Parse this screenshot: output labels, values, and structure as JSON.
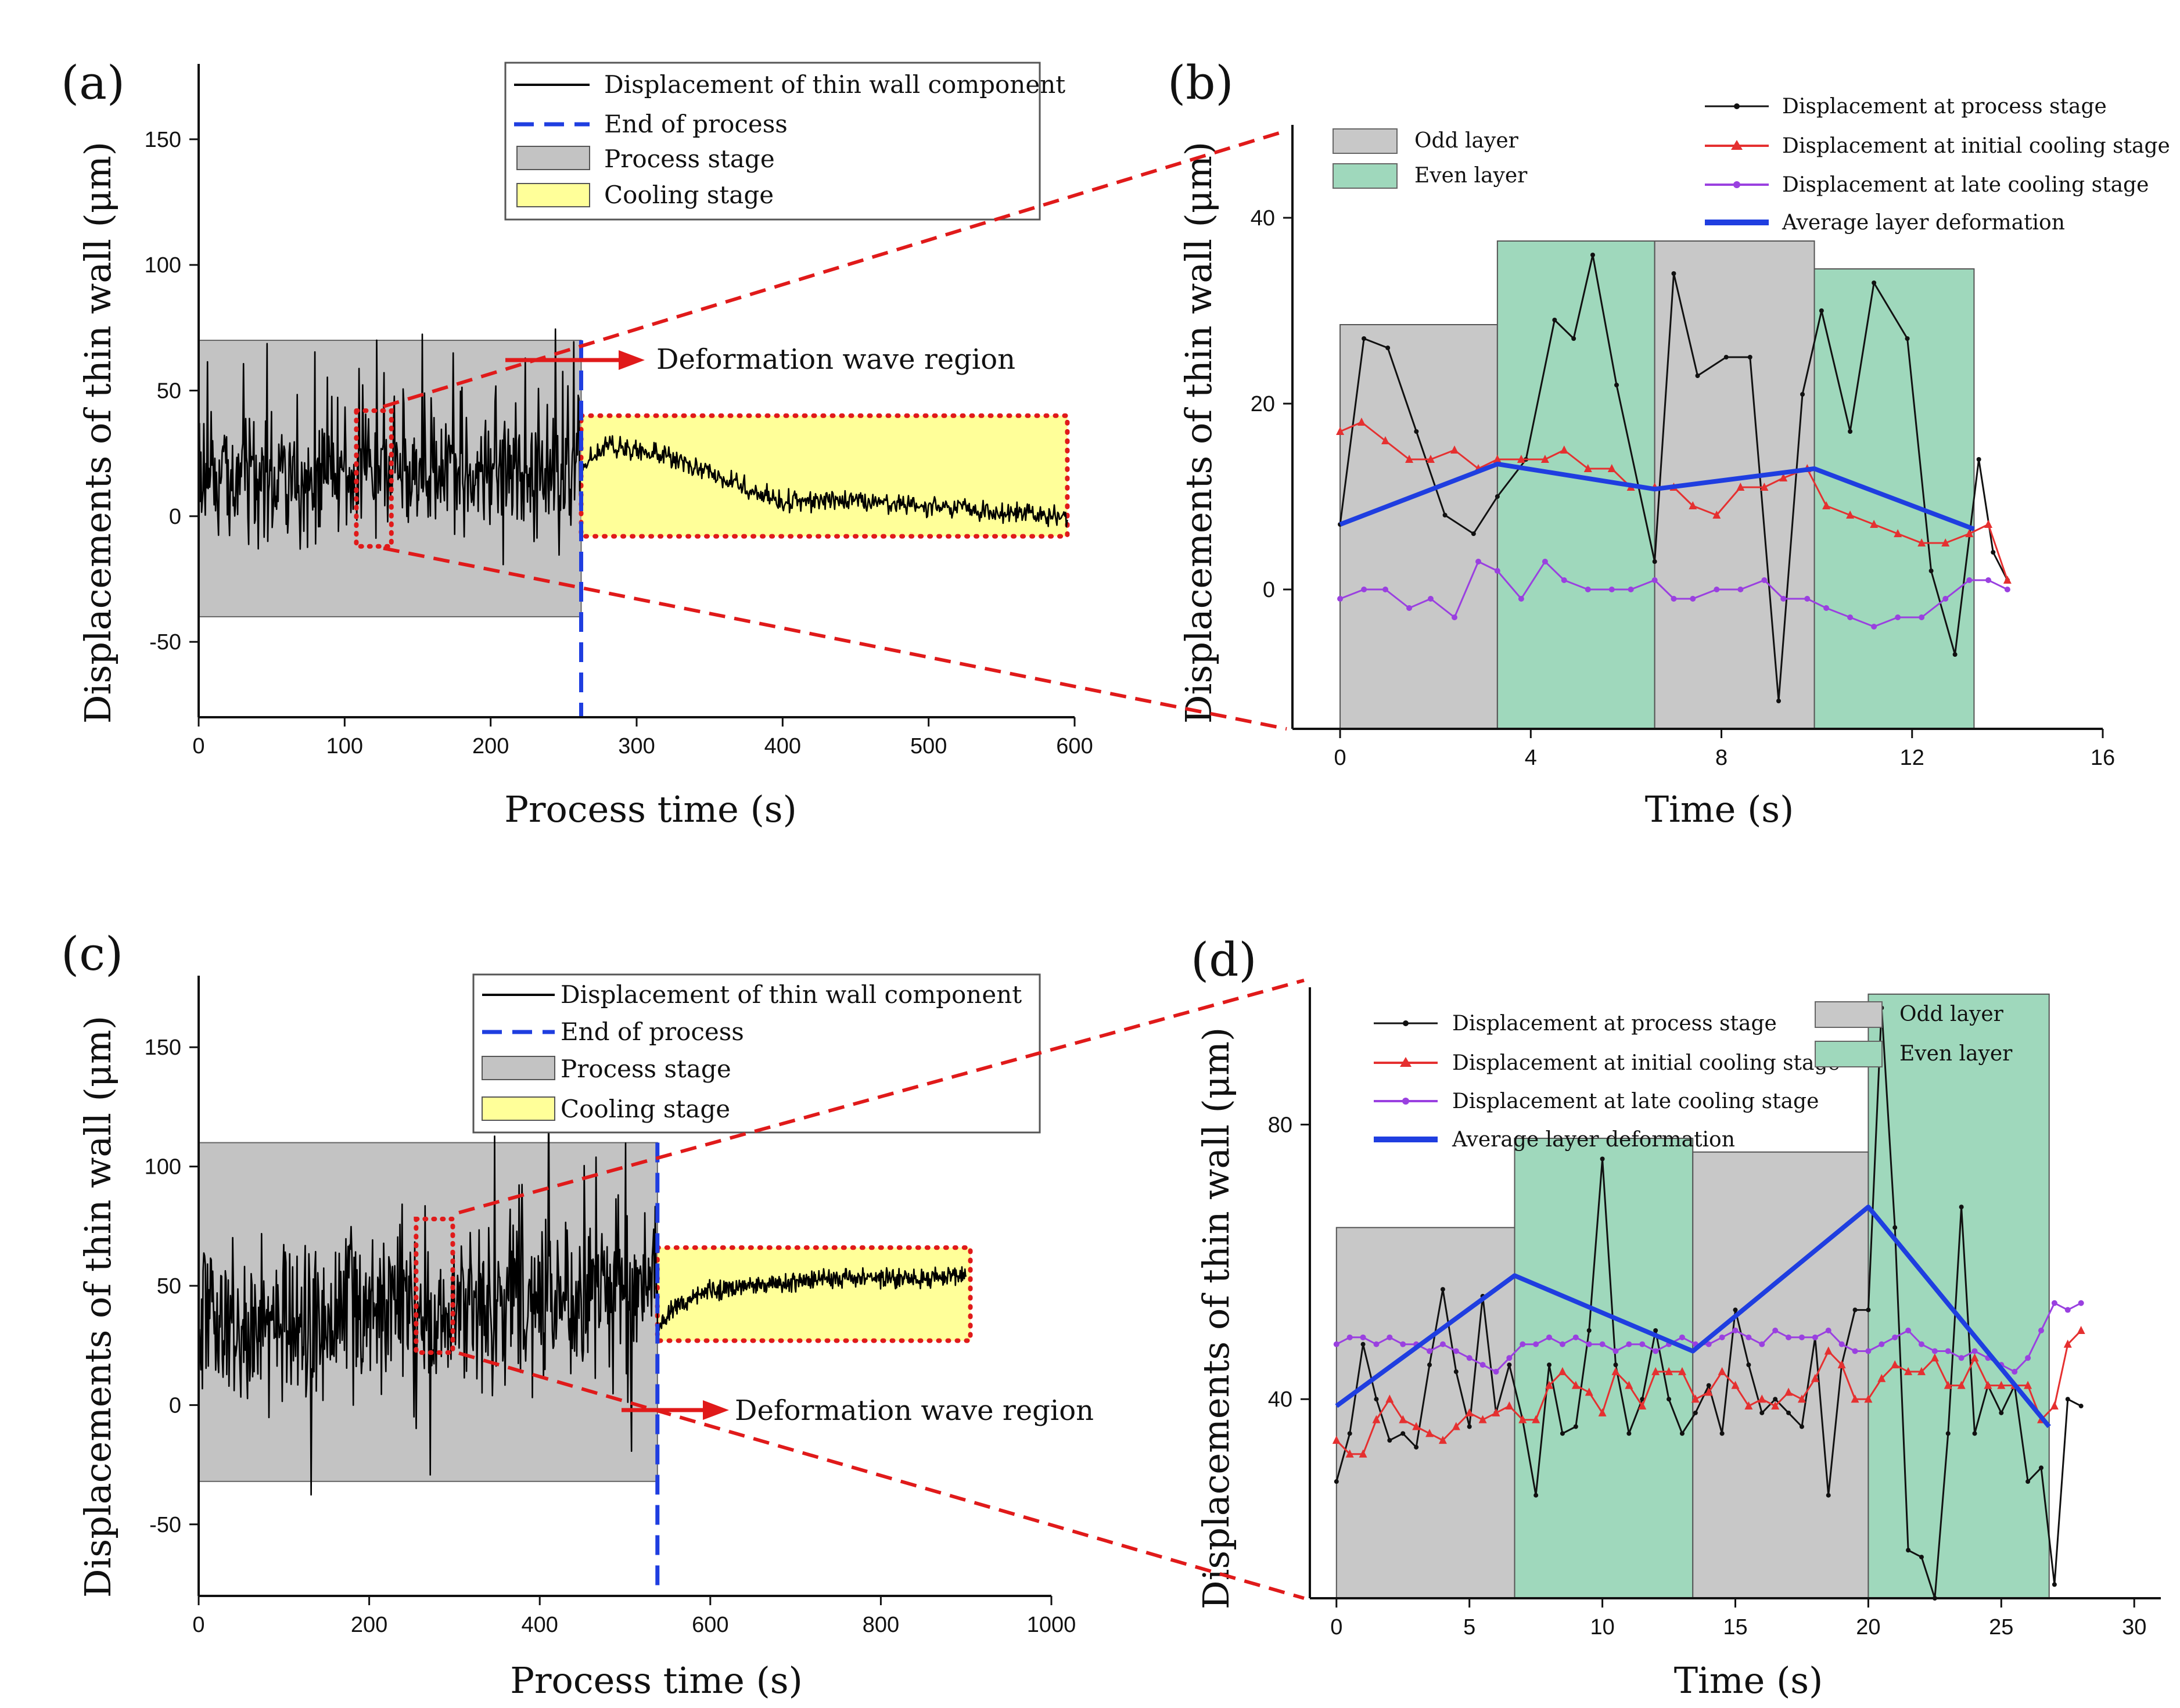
{
  "chart_data": [
    {
      "id": "a",
      "type": "line",
      "panel_label": "(a)",
      "xlabel": "Process time (s)",
      "ylabel": "Displacements of thin wall (μm)",
      "xlim": [
        0,
        600
      ],
      "ylim": [
        -80,
        180
      ],
      "xticks": [
        0,
        100,
        200,
        300,
        400,
        500,
        600
      ],
      "yticks": [
        -50,
        0,
        50,
        100,
        150
      ],
      "legend": {
        "position": "top-right",
        "entries": [
          "Displacement of thin wall component",
          "End of process",
          "Process stage",
          "Cooling stage"
        ]
      },
      "end_of_process_x": 262,
      "process_stage": {
        "x": [
          0,
          262
        ],
        "y": [
          -40,
          70
        ]
      },
      "cooling_stage": {
        "x": [
          262,
          595
        ],
        "y": [
          -8,
          40
        ]
      },
      "zoom_box": {
        "x": [
          108,
          132
        ],
        "y": [
          -12,
          42
        ]
      },
      "annotation": "Deformation wave region",
      "series": [
        {
          "name": "Displacement of thin wall component",
          "color": "#000000",
          "process_trend": {
            "x": [
              0,
              262
            ],
            "center": [
              16,
              18
            ],
            "amplitude": 20
          },
          "cooling_trend": {
            "x": [
              262,
              280,
              300,
              320,
              340,
              360,
              380,
              400,
              430,
              460,
              500,
              540,
              570,
              595
            ],
            "y": [
              20,
              28,
              26,
              24,
              20,
              15,
              10,
              6,
              6,
              5,
              4,
              2,
              1,
              0
            ]
          }
        }
      ]
    },
    {
      "id": "b",
      "type": "line",
      "panel_label": "(b)",
      "xlabel": "Time (s)",
      "ylabel": "Displacements of thin wall (μm)",
      "xlim": [
        -1,
        16
      ],
      "ylim": [
        -15,
        50
      ],
      "xticks": [
        0,
        4,
        8,
        12,
        16
      ],
      "yticks": [
        0,
        20,
        40
      ],
      "legend_layers": {
        "position": "top-left",
        "entries": [
          "Odd layer",
          "Even layer"
        ]
      },
      "legend_series": {
        "position": "top-right",
        "entries": [
          "Displacement at process stage",
          "Displacement at initial cooling stage",
          "Displacement at late cooling stage",
          "Average layer deformation"
        ]
      },
      "layers": [
        {
          "type": "odd",
          "x": [
            0,
            3.3
          ],
          "top": 28.5
        },
        {
          "type": "even",
          "x": [
            3.3,
            6.6
          ],
          "top": 37.5
        },
        {
          "type": "odd",
          "x": [
            6.6,
            9.95
          ],
          "top": 37.5
        },
        {
          "type": "even",
          "x": [
            9.95,
            13.3
          ],
          "top": 34.5
        }
      ],
      "series": [
        {
          "name": "Displacement at process stage",
          "color": "#111111",
          "marker": "dot",
          "x": [
            0,
            0.5,
            1.0,
            1.6,
            2.2,
            2.8,
            3.3,
            3.9,
            4.5,
            4.9,
            5.3,
            5.8,
            6.6,
            7.0,
            7.5,
            8.1,
            8.6,
            9.2,
            9.7,
            10.1,
            10.7,
            11.2,
            11.9,
            12.4,
            12.9,
            13.4,
            13.7,
            14.0
          ],
          "y": [
            7,
            27,
            26,
            17,
            8,
            6,
            10,
            14,
            29,
            27,
            36,
            22,
            3,
            34,
            23,
            25,
            25,
            -12,
            21,
            30,
            17,
            33,
            27,
            2,
            -7,
            14,
            4,
            1
          ]
        },
        {
          "name": "Displacement at initial cooling stage",
          "color": "#e53030",
          "marker": "triangle",
          "x": [
            0,
            0.45,
            0.95,
            1.45,
            1.9,
            2.4,
            2.9,
            3.3,
            3.8,
            4.3,
            4.7,
            5.2,
            5.7,
            6.1,
            6.6,
            7.0,
            7.4,
            7.9,
            8.4,
            8.9,
            9.3,
            9.8,
            10.2,
            10.7,
            11.2,
            11.7,
            12.2,
            12.7,
            13.2,
            13.6,
            14.0
          ],
          "y": [
            17,
            18,
            16,
            14,
            14,
            15,
            13,
            14,
            14,
            14,
            15,
            13,
            13,
            11,
            11,
            11,
            9,
            8,
            11,
            11,
            12,
            13,
            9,
            8,
            7,
            6,
            5,
            5,
            6,
            7,
            1
          ]
        },
        {
          "name": "Displacement at late cooling stage",
          "color": "#9a40e0",
          "marker": "star",
          "x": [
            0,
            0.5,
            0.95,
            1.45,
            1.9,
            2.4,
            2.9,
            3.3,
            3.8,
            4.3,
            4.7,
            5.2,
            5.7,
            6.1,
            6.6,
            7.0,
            7.4,
            7.9,
            8.4,
            8.9,
            9.3,
            9.8,
            10.2,
            10.7,
            11.2,
            11.7,
            12.2,
            12.7,
            13.2,
            13.6,
            14.0
          ],
          "y": [
            -1,
            0,
            0,
            -2,
            -1,
            -3,
            3,
            2,
            -1,
            3,
            1,
            0,
            0,
            0,
            1,
            -1,
            -1,
            0,
            0,
            1,
            -1,
            -1,
            -2,
            -3,
            -4,
            -3,
            -3,
            -1,
            1,
            1,
            0
          ]
        },
        {
          "name": "Average layer deformation",
          "color": "#1f3ee0",
          "marker": "none",
          "x": [
            0,
            3.3,
            6.6,
            9.95,
            13.3
          ],
          "y": [
            7,
            13.5,
            10.8,
            13,
            6.5
          ]
        }
      ]
    },
    {
      "id": "c",
      "type": "line",
      "panel_label": "(c)",
      "xlabel": "Process time (s)",
      "ylabel": "Displacements of thin wall (μm)",
      "xlim": [
        0,
        1000
      ],
      "ylim": [
        -80,
        180
      ],
      "xticks": [
        0,
        200,
        400,
        600,
        800,
        1000
      ],
      "yticks": [
        -50,
        0,
        50,
        100,
        150
      ],
      "legend": {
        "position": "top-right",
        "entries": [
          "Displacement of thin wall component",
          "End of process",
          "Process stage",
          "Cooling stage"
        ]
      },
      "end_of_process_x": 538,
      "process_stage": {
        "x": [
          0,
          538
        ],
        "y": [
          -32,
          110
        ]
      },
      "cooling_stage": {
        "x": [
          538,
          905
        ],
        "y": [
          27,
          66
        ]
      },
      "zoom_box": {
        "x": [
          255,
          298
        ],
        "y": [
          22,
          78
        ]
      },
      "annotation": "Deformation wave region",
      "series": [
        {
          "name": "Displacement of thin wall component",
          "color": "#000000",
          "process_trend": {
            "x": [
              0,
              538
            ],
            "center": [
              30,
              48
            ],
            "amplitude": 28
          },
          "cooling_trend": {
            "x": [
              538,
              560,
              600,
              650,
              700,
              750,
              800,
              850,
              900
            ],
            "y": [
              32,
              42,
              48,
              50,
              52,
              53,
              53,
              53,
              54
            ]
          }
        }
      ]
    },
    {
      "id": "d",
      "type": "line",
      "panel_label": "(d)",
      "xlabel": "Time (s)",
      "ylabel": "Displacements of thin wall (μm)",
      "xlim": [
        -1,
        31
      ],
      "ylim": [
        11,
        100
      ],
      "xticks": [
        0,
        5,
        10,
        15,
        20,
        25,
        30
      ],
      "yticks": [
        40,
        80
      ],
      "legend_layers": {
        "position": "top-right",
        "entries": [
          "Odd layer",
          "Even layer"
        ]
      },
      "legend_series": {
        "position": "top-left",
        "entries": [
          "Displacement at process stage",
          "Displacement at initial cooling stage",
          "Displacement at late cooling stage",
          "Average layer deformation"
        ]
      },
      "layers": [
        {
          "type": "odd",
          "x": [
            0,
            6.7
          ],
          "top": 65
        },
        {
          "type": "even",
          "x": [
            6.7,
            13.4
          ],
          "top": 78
        },
        {
          "type": "odd",
          "x": [
            13.4,
            20.0
          ],
          "top": 76
        },
        {
          "type": "even",
          "x": [
            20.0,
            26.8
          ],
          "top": 99
        }
      ],
      "series": [
        {
          "name": "Displacement at process stage",
          "color": "#111111",
          "marker": "dot",
          "x": [
            0,
            0.5,
            1.0,
            1.5,
            2.0,
            2.5,
            3.0,
            3.5,
            4.0,
            4.5,
            5.0,
            5.5,
            6.0,
            6.5,
            7.0,
            7.5,
            8.0,
            8.5,
            9.0,
            9.5,
            10.0,
            10.5,
            11.0,
            11.5,
            12.0,
            12.5,
            13.0,
            13.5,
            14.0,
            14.5,
            15.0,
            15.5,
            16.0,
            16.5,
            17.0,
            17.5,
            18.0,
            18.5,
            19.0,
            19.5,
            20.0,
            20.5,
            21.0,
            21.5,
            22.0,
            22.5,
            23.0,
            23.5,
            24.0,
            24.5,
            25.0,
            25.5,
            26.0,
            26.5,
            27.0,
            27.5,
            28.0
          ],
          "y": [
            28,
            35,
            48,
            40,
            34,
            35,
            33,
            45,
            56,
            44,
            36,
            55,
            38,
            45,
            37,
            26,
            45,
            35,
            36,
            50,
            75,
            45,
            35,
            40,
            50,
            40,
            35,
            38,
            42,
            35,
            53,
            45,
            38,
            40,
            38,
            36,
            49,
            26,
            45,
            53,
            53,
            97,
            65,
            18,
            17,
            11,
            35,
            68,
            35,
            42,
            38,
            42,
            28,
            30,
            13,
            40,
            39
          ]
        },
        {
          "name": "Displacement at initial cooling stage",
          "color": "#e53030",
          "marker": "triangle",
          "x": [
            0,
            0.5,
            1.0,
            1.5,
            2.0,
            2.5,
            3.0,
            3.5,
            4.0,
            4.5,
            5.0,
            5.5,
            6.0,
            6.5,
            7.0,
            7.5,
            8.0,
            8.5,
            9.0,
            9.5,
            10.0,
            10.5,
            11.0,
            11.5,
            12.0,
            12.5,
            13.0,
            13.5,
            14.0,
            14.5,
            15.0,
            15.5,
            16.0,
            16.5,
            17.0,
            17.5,
            18.0,
            18.5,
            19.0,
            19.5,
            20.0,
            20.5,
            21.0,
            21.5,
            22.0,
            22.5,
            23.0,
            23.5,
            24.0,
            24.5,
            25.0,
            25.5,
            26.0,
            26.5,
            27.0,
            27.5,
            28.0
          ],
          "y": [
            34,
            32,
            32,
            37,
            40,
            37,
            36,
            35,
            34,
            36,
            38,
            37,
            38,
            39,
            37,
            37,
            42,
            44,
            42,
            41,
            38,
            44,
            42,
            39,
            44,
            44,
            44,
            40,
            41,
            44,
            42,
            39,
            40,
            39,
            41,
            40,
            43,
            47,
            45,
            40,
            40,
            43,
            45,
            44,
            44,
            46,
            42,
            42,
            46,
            42,
            42,
            42,
            42,
            37,
            39,
            48,
            50
          ]
        },
        {
          "name": "Displacement at late cooling stage",
          "color": "#9a40e0",
          "marker": "star",
          "x": [
            0,
            0.5,
            1.0,
            1.5,
            2.0,
            2.5,
            3.0,
            3.5,
            4.0,
            4.5,
            5.0,
            5.5,
            6.0,
            6.5,
            7.0,
            7.5,
            8.0,
            8.5,
            9.0,
            9.5,
            10.0,
            10.5,
            11.0,
            11.5,
            12.0,
            12.5,
            13.0,
            13.5,
            14.0,
            14.5,
            15.0,
            15.5,
            16.0,
            16.5,
            17.0,
            17.5,
            18.0,
            18.5,
            19.0,
            19.5,
            20.0,
            20.5,
            21.0,
            21.5,
            22.0,
            22.5,
            23.0,
            23.5,
            24.0,
            24.5,
            25.0,
            25.5,
            26.0,
            26.5,
            27.0,
            27.5,
            28.0
          ],
          "y": [
            48,
            49,
            49,
            48,
            49,
            48,
            48,
            47,
            48,
            47,
            46,
            45,
            44,
            46,
            48,
            48,
            49,
            48,
            49,
            48,
            48,
            47,
            48,
            48,
            47,
            48,
            49,
            48,
            48,
            49,
            50,
            49,
            48,
            50,
            49,
            49,
            49,
            50,
            48,
            47,
            47,
            48,
            49,
            50,
            48,
            47,
            47,
            46,
            47,
            46,
            45,
            44,
            46,
            50,
            54,
            53,
            54
          ]
        },
        {
          "name": "Average layer deformation",
          "color": "#1f3ee0",
          "marker": "none",
          "x": [
            0,
            6.7,
            13.4,
            20.0,
            26.8
          ],
          "y": [
            39,
            58,
            47,
            68,
            36
          ]
        }
      ]
    }
  ],
  "colors": {
    "process_fill": "#c3c3c3",
    "cooling_fill": "#ffff99",
    "odd_fill": "#c8c8c8",
    "even_fill": "#9fd8bc",
    "zoom_red": "#e01a1a",
    "end_blue": "#1f3ee0"
  }
}
